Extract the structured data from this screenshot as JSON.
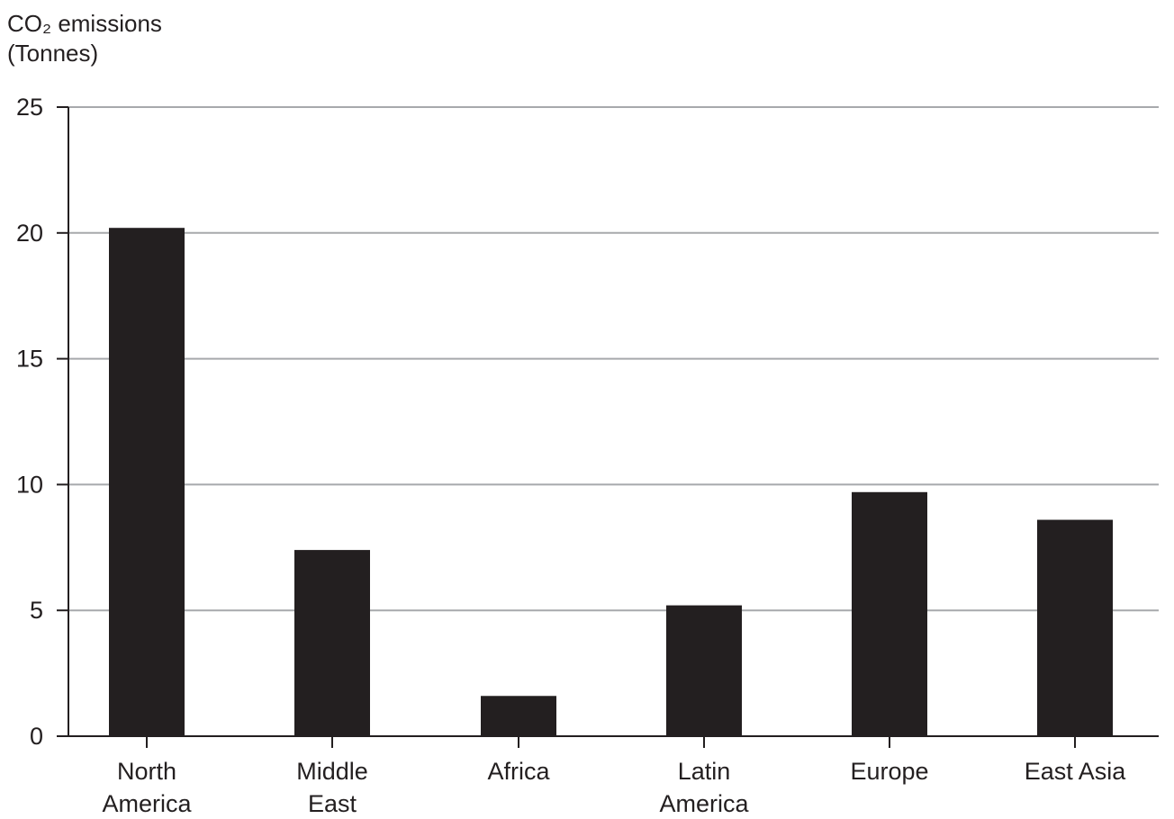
{
  "chart_data": {
    "type": "bar",
    "title": "",
    "ylabel_lines": [
      "CO₂ emissions",
      "(Tonnes)"
    ],
    "xlabel": "",
    "categories": [
      [
        "North",
        "America"
      ],
      [
        "Middle",
        "East"
      ],
      [
        "Africa"
      ],
      [
        "Latin",
        "America"
      ],
      [
        "Europe"
      ],
      [
        "East Asia"
      ]
    ],
    "values": [
      20.2,
      7.4,
      1.6,
      5.2,
      9.7,
      8.6
    ],
    "ylim": [
      0,
      25
    ],
    "yticks": [
      0,
      5,
      10,
      15,
      20,
      25
    ],
    "grid": true,
    "legend": "none",
    "colors": {
      "bar": "#231f20",
      "grid": "#a7a9ac",
      "axis": "#231f20",
      "text": "#231f20"
    }
  }
}
